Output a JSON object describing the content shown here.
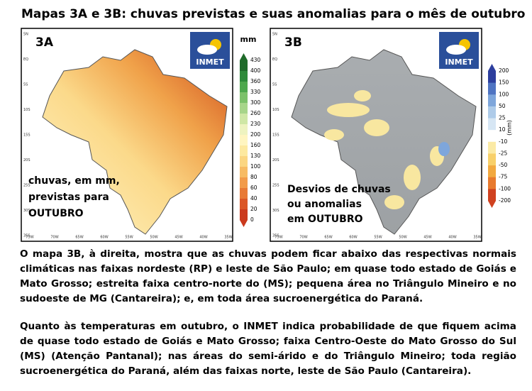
{
  "title": "Mapas 3A e 3B: chuvas previstas e suas anomalias para o mês de outubro",
  "maps": [
    {
      "label": "3A",
      "logo": "INMET",
      "caption": [
        "chuvas, em mm,",
        "previstas para",
        "OUTUBRO"
      ],
      "lat_labels": [
        "5N",
        "EQ",
        "5S",
        "10S",
        "15S",
        "20S",
        "25S",
        "30S",
        "35S"
      ],
      "lon_labels": [
        "75W",
        "70W",
        "65W",
        "60W",
        "55W",
        "50W",
        "45W",
        "40W",
        "35W"
      ],
      "legend": {
        "unit": "mm",
        "ticks": [
          430,
          400,
          360,
          330,
          300,
          260,
          230,
          200,
          160,
          130,
          100,
          80,
          60,
          40,
          20,
          0
        ]
      }
    },
    {
      "label": "3B",
      "logo": "INMET",
      "caption": [
        "Desvios de chuvas",
        "ou anomalias",
        "em OUTUBRO"
      ],
      "lat_labels": [
        "5N",
        "EQ",
        "5S",
        "10S",
        "15S",
        "20S",
        "25S",
        "30S",
        "35S"
      ],
      "lon_labels": [
        "75W",
        "70W",
        "65W",
        "60W",
        "55W",
        "50W",
        "45W",
        "40W",
        "35W"
      ],
      "legend": {
        "unit": "(mm)",
        "ticks": [
          200,
          150,
          100,
          50,
          25,
          10,
          -10,
          -25,
          -50,
          -75,
          -100,
          -200
        ]
      }
    }
  ],
  "paragraphs": [
    "O mapa 3B, à direita, mostra que as chuvas podem ficar abaixo das respectivas normais climáticas nas faixas nordeste (RP) e leste de São Paulo; em quase todo estado de Goiás e Mato Grosso; estreita faixa centro-norte do (MS); pequena área no Triângulo Mineiro e no sudoeste de MG (Cantareira); e, em toda área sucroenergética do Paraná.",
    "Quanto às temperaturas em outubro, o INMET indica probabilidade de que fiquem acima de quase todo estado de Goiás e Mato Grosso; faixa Centro-Oeste do Mato Grosso do Sul (MS) (Atenção Pantanal); nas áreas do semi-árido e do Triângulo Mineiro; toda região sucroenergética do Paraná, além das faixas norte, leste de São Paulo (Cantareira)."
  ]
}
